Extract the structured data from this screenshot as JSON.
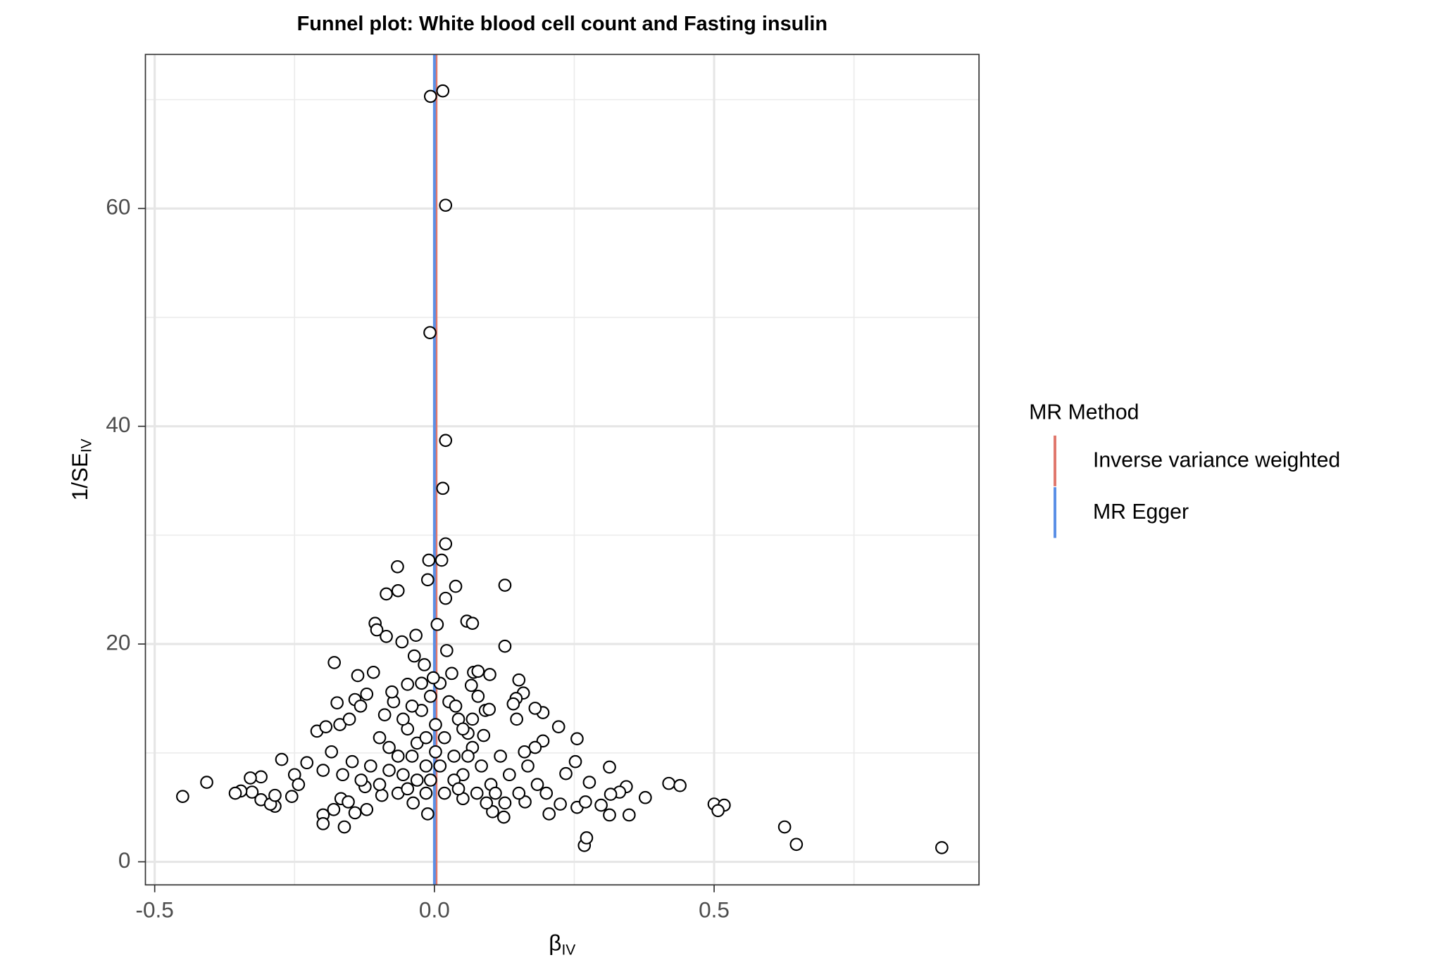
{
  "chart_data": {
    "type": "scatter",
    "title": "Funnel plot: White blood cell count and Fasting insulin",
    "xlabel": {
      "text": "β",
      "subscript": "IV"
    },
    "ylabel": {
      "text": "1/SE",
      "subscript": "IV"
    },
    "xlim": [
      -0.5166,
      0.9735
    ],
    "ylim": [
      -2.12,
      74.15
    ],
    "xticks": [
      -0.5,
      {
        "value": 0,
        "label": "0.0"
      },
      0.5
    ],
    "yticks": [
      0,
      20,
      40,
      60
    ],
    "x_minor_grid": [
      -0.25,
      0.25,
      0.75
    ],
    "y_minor_grid": [
      10,
      30,
      50,
      70
    ],
    "grid": true,
    "point_fill": "#ffffff",
    "point_stroke": "#000000",
    "legend_title": "MR Method",
    "legend_position": "right",
    "lines": [
      {
        "name": "Inverse variance weighted",
        "color": "#e0776c",
        "value": 0.003
      },
      {
        "name": "MR Egger",
        "color": "#5a8fe6",
        "value": 0
      }
    ],
    "x": [
      -0.007,
      0.015,
      0.02,
      -0.008,
      0.02,
      0.015,
      0.02,
      -0.01,
      0.013,
      -0.066,
      -0.012,
      0.038,
      0.126,
      -0.065,
      -0.086,
      0.02,
      -0.106,
      -0.103,
      0.058,
      0.068,
      0.005,
      -0.086,
      -0.033,
      -0.058,
      0.126,
      -0.179,
      -0.036,
      0.022,
      -0.45,
      -0.407,
      0.907,
      0.647,
      0.626,
      0.268,
      0.272,
      0.5,
      0.518,
      0.507,
      0.419,
      0.439,
      0.377,
      0.348,
      0.343,
      0.331,
      0.313,
      0.315,
      0.313,
      0.222,
      0.255,
      0.252,
      0.235,
      0.277,
      0.194,
      0.18,
      0.151,
      0.159,
      0.146,
      0.141,
      0.147,
      0.194,
      0.18,
      0.161,
      0.07,
      0.078,
      0.099,
      0.066,
      0.078,
      0.091,
      0.098,
      0.088,
      -0.273,
      -0.228,
      -0.25,
      -0.243,
      -0.255,
      -0.21,
      -0.194,
      -0.199,
      -0.184,
      -0.174,
      -0.169,
      -0.152,
      -0.142,
      -0.137,
      -0.109,
      -0.121,
      -0.132,
      -0.31,
      -0.329,
      -0.326,
      -0.346,
      -0.356,
      -0.31,
      -0.285,
      -0.293,
      -0.285,
      -0.199,
      -0.199,
      -0.161,
      -0.18,
      -0.167,
      -0.154,
      -0.142,
      -0.121,
      -0.124,
      -0.094,
      -0.065,
      -0.038,
      -0.012,
      0.124,
      0.104,
      0.162,
      0.205,
      0.225,
      0.255,
      0.27,
      0.298,
      -0.098,
      -0.081,
      -0.065,
      -0.048,
      -0.031,
      -0.015,
      0.002,
      0.018,
      0.035,
      0.051,
      0.068,
      0.084,
      0.101,
      0.118,
      0.134,
      0.151,
      0.167,
      0.184,
      0.2,
      -0.114,
      -0.131,
      -0.147,
      -0.164,
      -0.098,
      -0.081,
      -0.048,
      -0.031,
      -0.015,
      0.018,
      0.035,
      0.051,
      0.076,
      0.093,
      0.109,
      0.126,
      -0.023,
      -0.007,
      0.01,
      0.026,
      0.043,
      0.06,
      -0.04,
      -0.056,
      -0.073,
      -0.089,
      -0.018,
      -0.002,
      0.031,
      -0.023,
      -0.048,
      -0.076,
      0.038,
      0.051,
      0.068,
      -0.015,
      0.002,
      -0.04,
      0.01,
      0.06,
      -0.056,
      -0.007,
      0.043
    ],
    "values": [
      70.3,
      70.8,
      60.3,
      48.6,
      38.7,
      34.3,
      29.2,
      27.7,
      27.7,
      27.1,
      25.9,
      25.3,
      25.4,
      24.9,
      24.6,
      24.2,
      21.9,
      21.3,
      22.1,
      21.9,
      21.8,
      20.7,
      20.8,
      20.2,
      19.8,
      18.3,
      18.9,
      19.4,
      6.0,
      7.3,
      1.3,
      1.6,
      3.2,
      1.5,
      2.2,
      5.3,
      5.2,
      4.7,
      7.2,
      7.0,
      5.9,
      4.3,
      6.9,
      6.4,
      8.7,
      6.2,
      4.3,
      12.4,
      11.3,
      9.2,
      8.1,
      7.3,
      13.7,
      14.1,
      16.7,
      15.5,
      15.0,
      14.5,
      13.1,
      11.1,
      10.5,
      10.1,
      17.4,
      17.5,
      17.2,
      16.2,
      15.2,
      13.9,
      14.0,
      11.6,
      9.4,
      9.1,
      8.0,
      7.1,
      6.0,
      12.0,
      12.4,
      8.4,
      10.1,
      14.6,
      12.6,
      13.1,
      14.9,
      17.1,
      17.4,
      15.4,
      14.3,
      7.8,
      7.7,
      6.4,
      6.5,
      6.3,
      5.7,
      5.1,
      5.3,
      6.1,
      4.3,
      3.5,
      3.2,
      4.8,
      5.8,
      5.5,
      4.5,
      4.8,
      6.9,
      6.1,
      6.3,
      5.4,
      4.4,
      4.1,
      4.6,
      5.5,
      4.4,
      5.3,
      5.0,
      5.5,
      5.2,
      11.4,
      10.5,
      9.7,
      12.2,
      10.9,
      8.8,
      10.1,
      11.4,
      9.7,
      8.0,
      10.5,
      8.8,
      7.1,
      9.7,
      8.0,
      6.3,
      8.8,
      7.1,
      6.3,
      8.8,
      7.5,
      9.2,
      8.0,
      7.1,
      8.4,
      6.7,
      7.5,
      6.3,
      6.3,
      7.5,
      5.8,
      6.3,
      5.4,
      6.3,
      5.4,
      13.9,
      15.2,
      16.4,
      14.7,
      13.1,
      11.8,
      14.3,
      13.1,
      14.7,
      13.5,
      18.1,
      16.9,
      17.3,
      16.4,
      16.3,
      15.6,
      14.3,
      12.2,
      13.1,
      11.4,
      12.6,
      9.7,
      8.8,
      9.7,
      8.0,
      7.5,
      6.7
    ]
  }
}
